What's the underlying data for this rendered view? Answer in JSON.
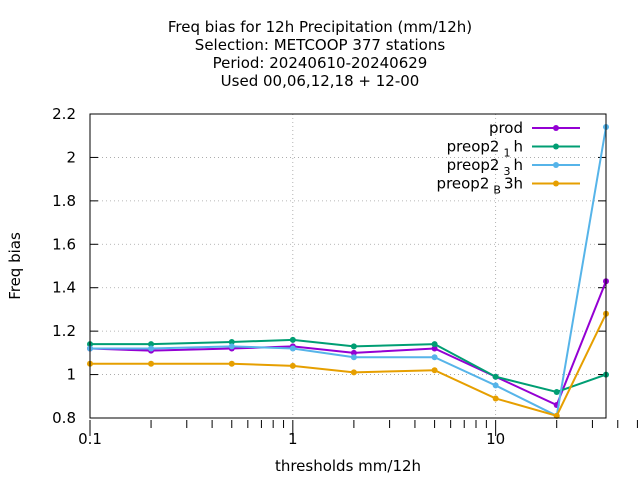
{
  "chart_data": {
    "type": "line",
    "title_lines": [
      "Freq bias  for 12h Precipitation (mm/12h)",
      "Selection: METCOOP    377 stations",
      "Period: 20240610-20240629",
      "Used  00,06,12,18 + 12-00"
    ],
    "xlabel": "thresholds mm/12h",
    "ylabel": "Freq bias",
    "x_scale": "log",
    "xlim": [
      0.1,
      35
    ],
    "ylim": [
      0.8,
      2.2
    ],
    "x_tick_labels": [
      {
        "value": 0.1,
        "label": "0.1"
      },
      {
        "value": 1,
        "label": "1"
      },
      {
        "value": 10,
        "label": "10"
      }
    ],
    "y_ticks": [
      0.8,
      1.0,
      1.2,
      1.4,
      1.6,
      1.8,
      2.0,
      2.2
    ],
    "y_tick_labels": [
      "0.8",
      "1",
      "1.2",
      "1.4",
      "1.6",
      "1.8",
      "2",
      "2.2"
    ],
    "grid": true,
    "legend_position": "top-right",
    "x": [
      0.1,
      0.2,
      0.5,
      1,
      2,
      5,
      10,
      20,
      35
    ],
    "series": [
      {
        "name_base": "prod",
        "name_sub": "",
        "name_suffix": "",
        "color": "#9400d3",
        "values": [
          1.12,
          1.11,
          1.12,
          1.13,
          1.1,
          1.12,
          0.99,
          0.86,
          1.43
        ]
      },
      {
        "name_base": "preop2",
        "name_sub": "1",
        "name_suffix": "h",
        "color": "#009e73",
        "values": [
          1.14,
          1.14,
          1.15,
          1.16,
          1.13,
          1.14,
          0.99,
          0.92,
          1.0
        ]
      },
      {
        "name_base": "preop2",
        "name_sub": "3",
        "name_suffix": "h",
        "color": "#56b4e9",
        "values": [
          1.12,
          1.12,
          1.13,
          1.12,
          1.08,
          1.08,
          0.95,
          0.81,
          2.14
        ]
      },
      {
        "name_base": "preop2",
        "name_sub": "B",
        "name_suffix": "3h",
        "color": "#e69f00",
        "values": [
          1.05,
          1.05,
          1.05,
          1.04,
          1.01,
          1.02,
          0.89,
          0.81,
          1.28
        ]
      }
    ]
  }
}
